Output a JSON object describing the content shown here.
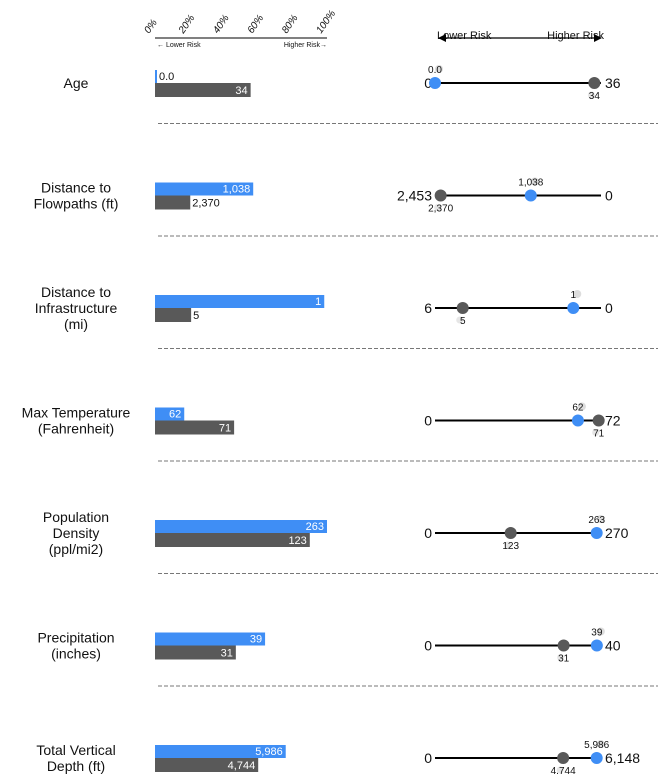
{
  "chart_data": {
    "type": "bar",
    "bar_axis": {
      "ticks": [
        "0%",
        "20%",
        "40%",
        "60%",
        "80%",
        "100%"
      ],
      "left_note": "← Lower Risk",
      "right_note": "Higher Risk→"
    },
    "dot_axis": {
      "left_label": "Lower Risk",
      "right_label": "Higher Risk"
    },
    "colors": {
      "blue": "#3f8ef5",
      "gray": "#595959",
      "line": "#000000",
      "divider": "#777777"
    },
    "metrics": [
      {
        "label": [
          "Age"
        ],
        "blue_value": "0.0",
        "gray_value": "34",
        "blue_frac": 0.0,
        "gray_frac": 0.556,
        "left_end": "0",
        "right_end": "36",
        "blue_pos": 0.0,
        "gray_pos": 0.96
      },
      {
        "label": [
          "Distance to",
          "Flowpaths (ft)"
        ],
        "blue_value": "1,038",
        "gray_value": "2,370",
        "blue_frac": 0.571,
        "gray_frac": 0.205,
        "left_end": "2,453",
        "right_end": "0",
        "blue_pos": 0.577,
        "gray_pos": 0.034
      },
      {
        "label": [
          "Distance to",
          "Infrastructure",
          "(mi)"
        ],
        "blue_value": "1",
        "gray_value": "5",
        "blue_frac": 0.984,
        "gray_frac": 0.21,
        "left_end": "6",
        "right_end": "0",
        "blue_pos": 0.833,
        "gray_pos": 0.167
      },
      {
        "label": [
          "Max Temperature",
          "(Fahrenheit)"
        ],
        "blue_value": "62",
        "gray_value": "71",
        "blue_frac": 0.17,
        "gray_frac": 0.46,
        "left_end": "0",
        "right_end": "72",
        "blue_pos": 0.861,
        "gray_pos": 0.986
      },
      {
        "label": [
          "Population",
          "Density",
          "(ppl/mi2)"
        ],
        "blue_value": "263",
        "gray_value": "123",
        "blue_frac": 1.0,
        "gray_frac": 0.9,
        "left_end": "0",
        "right_end": "270",
        "blue_pos": 0.974,
        "gray_pos": 0.456
      },
      {
        "label": [
          "Precipitation",
          "(inches)"
        ],
        "blue_value": "39",
        "gray_value": "31",
        "blue_frac": 0.64,
        "gray_frac": 0.47,
        "left_end": "0",
        "right_end": "40",
        "blue_pos": 0.975,
        "gray_pos": 0.775
      },
      {
        "label": [
          "Total Vertical",
          "Depth (ft)"
        ],
        "blue_value": "5,986",
        "gray_value": "4,744",
        "blue_frac": 0.76,
        "gray_frac": 0.6,
        "left_end": "0",
        "right_end": "6,148",
        "blue_pos": 0.974,
        "gray_pos": 0.772
      }
    ]
  }
}
